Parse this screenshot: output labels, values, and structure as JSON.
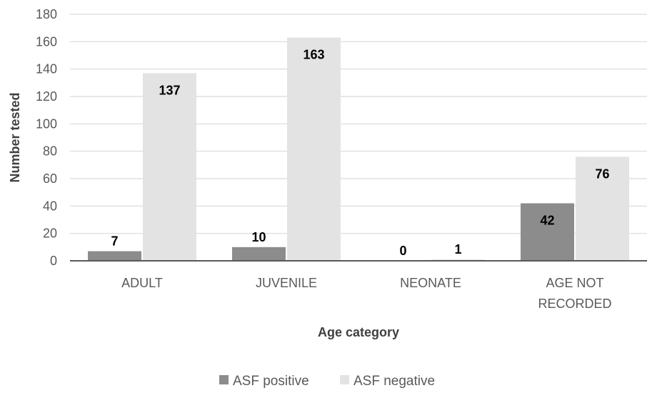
{
  "chart_data": {
    "type": "bar",
    "categories": [
      [
        "ADULT"
      ],
      [
        "JUVENILE"
      ],
      [
        "NEONATE"
      ],
      [
        "AGE NOT",
        "RECORDED"
      ]
    ],
    "series": [
      {
        "name": "ASF positive",
        "values": [
          7,
          10,
          0,
          42
        ],
        "color": "#8c8c8c"
      },
      {
        "name": "ASF negative",
        "values": [
          137,
          163,
          1,
          76
        ],
        "color": "#e3e3e3"
      }
    ],
    "title": "",
    "xlabel": "Age category",
    "ylabel": "Number tested",
    "ylim": [
      0,
      180
    ],
    "yticks": [
      0,
      20,
      40,
      60,
      80,
      100,
      120,
      140,
      160,
      180
    ],
    "grid": true,
    "legend": "bottom"
  }
}
